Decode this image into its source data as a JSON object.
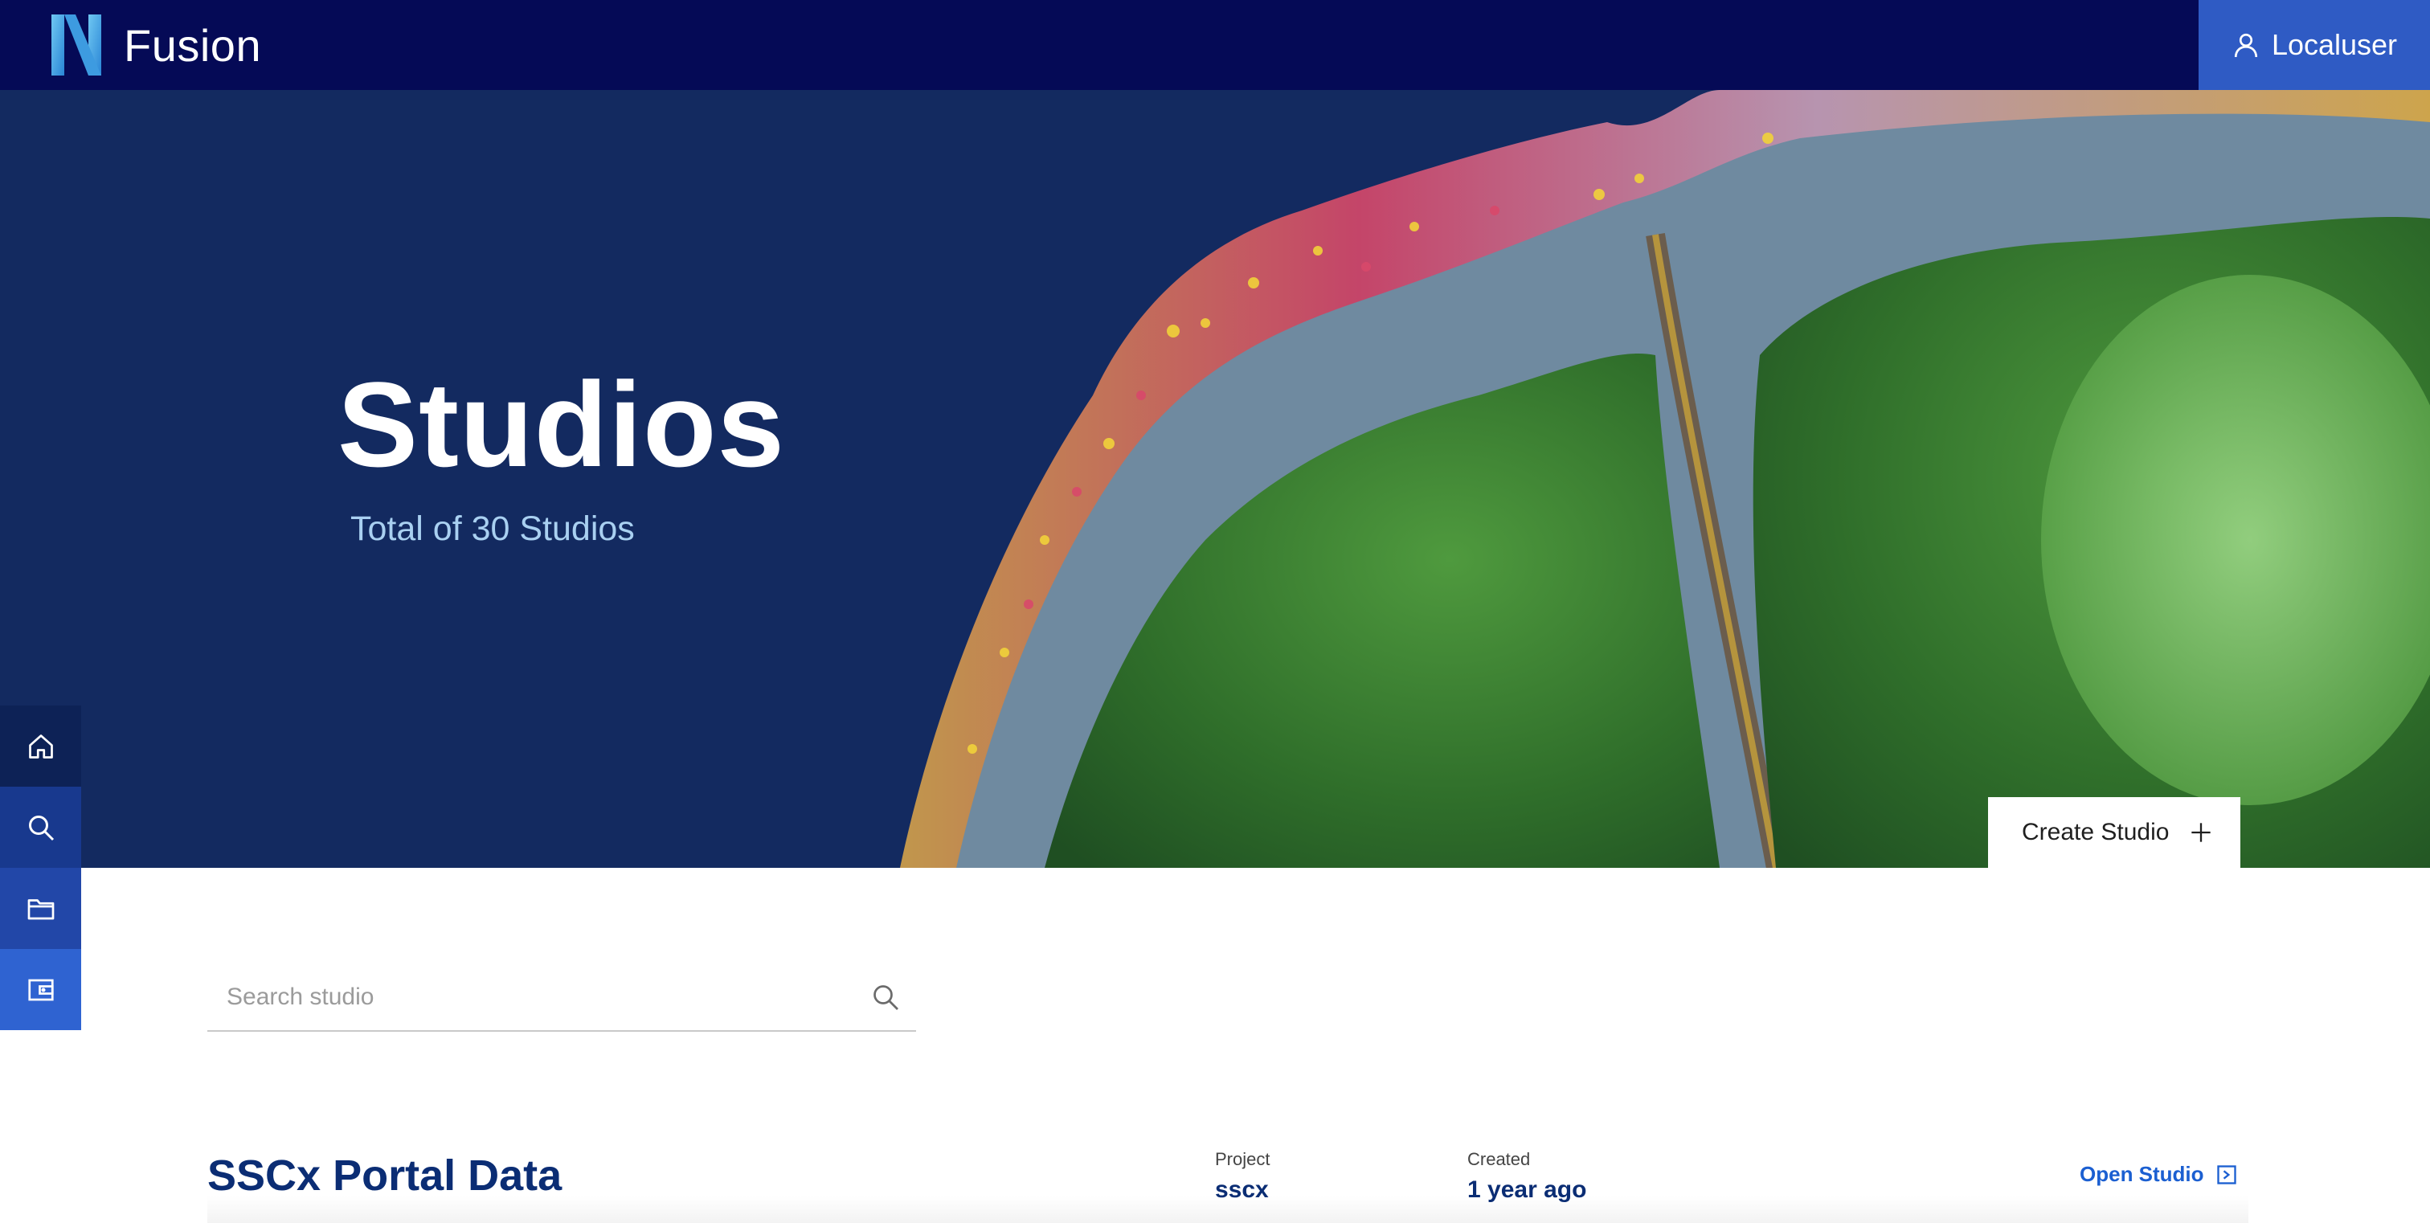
{
  "app": {
    "name": "Fusion"
  },
  "user": {
    "name": "Localuser",
    "icon": "user-icon"
  },
  "hero": {
    "title": "Studios",
    "subtitle": "Total of 30 Studios",
    "create_button": "Create Studio"
  },
  "sidenav": {
    "items": [
      {
        "name": "home",
        "icon": "home-icon"
      },
      {
        "name": "search",
        "icon": "search-icon"
      },
      {
        "name": "projects",
        "icon": "folder-icon"
      },
      {
        "name": "studios",
        "icon": "wallet-icon"
      }
    ]
  },
  "search": {
    "placeholder": "Search studio",
    "value": ""
  },
  "studios": [
    {
      "title": "SSCx Portal Data",
      "project_label": "Project",
      "project": "sscx",
      "created_label": "Created",
      "created": "1 year ago",
      "open_label": "Open Studio"
    }
  ],
  "colors": {
    "topbar": "#050a56",
    "accent": "#2f5bc4",
    "hero_bg": "#132a60",
    "title_blue": "#0b2d74",
    "link_blue": "#1b5fd1"
  }
}
